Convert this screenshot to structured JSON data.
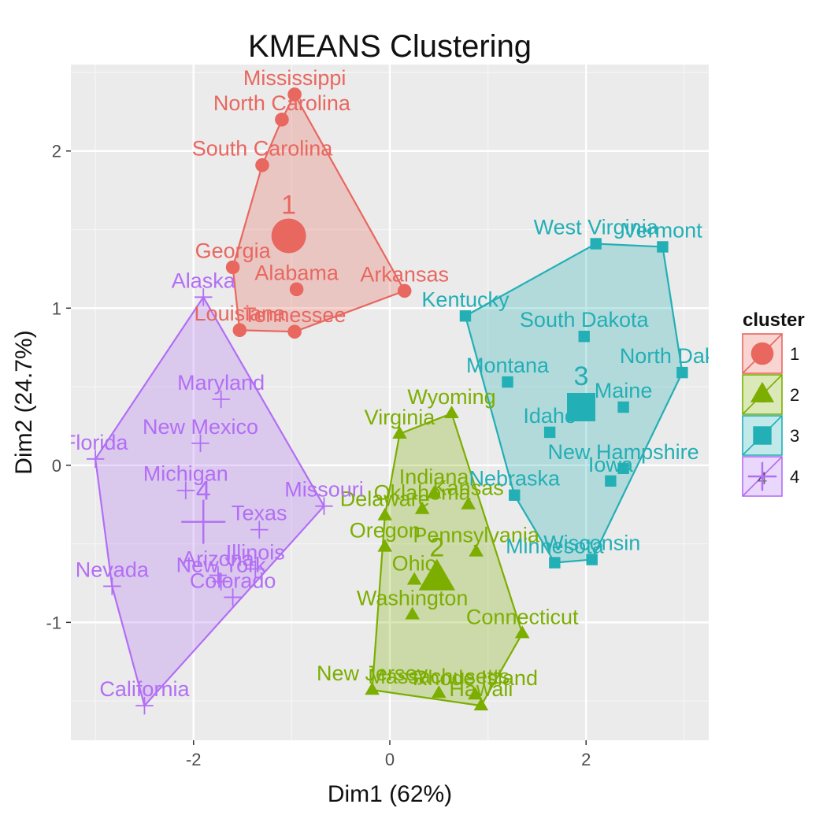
{
  "chart_data": {
    "type": "scatter",
    "title": "KMEANS Clustering",
    "xlabel": "Dim1 (62%)",
    "ylabel": "Dim2 (24.7%)",
    "xlim": [
      -3.25,
      3.25
    ],
    "ylim": [
      -1.75,
      2.55
    ],
    "x_ticks": [
      -2,
      0,
      2
    ],
    "y_ticks": [
      -1,
      0,
      1,
      2
    ],
    "x_tick_labels": [
      "-2",
      "0",
      "2"
    ],
    "y_tick_labels": [
      "-1",
      "0",
      "1",
      "2"
    ],
    "grid": true,
    "legend": {
      "title": "cluster",
      "position": "right",
      "entries": [
        "1",
        "2",
        "3",
        "4"
      ]
    },
    "colors": {
      "1": "#E8675F",
      "2": "#7CAE00",
      "3": "#22AFB5",
      "4": "#B26EF5"
    },
    "clusters": [
      {
        "name": "1",
        "shape": "circle",
        "centroid": {
          "x": -1.03,
          "y": 1.46,
          "label": "1"
        },
        "points": [
          {
            "label": "Mississippi",
            "x": -0.97,
            "y": 2.36
          },
          {
            "label": "North Carolina",
            "x": -1.1,
            "y": 2.2
          },
          {
            "label": "South Carolina",
            "x": -1.3,
            "y": 1.91
          },
          {
            "label": "Georgia",
            "x": -1.6,
            "y": 1.26
          },
          {
            "label": "Alabama",
            "x": -0.95,
            "y": 1.12
          },
          {
            "label": "Arkansas",
            "x": 0.15,
            "y": 1.11
          },
          {
            "label": "Louisiana",
            "x": -1.53,
            "y": 0.86
          },
          {
            "label": "Tennessee",
            "x": -0.97,
            "y": 0.85
          }
        ]
      },
      {
        "name": "2",
        "shape": "triangle",
        "centroid": {
          "x": 0.48,
          "y": -0.72,
          "label": "2"
        },
        "points": [
          {
            "label": "Wyoming",
            "x": 0.63,
            "y": 0.33
          },
          {
            "label": "Virginia",
            "x": 0.1,
            "y": 0.2
          },
          {
            "label": "Indiana",
            "x": 0.45,
            "y": -0.18
          },
          {
            "label": "Kansas",
            "x": 0.8,
            "y": -0.25
          },
          {
            "label": "Oklahoma",
            "x": 0.33,
            "y": -0.28
          },
          {
            "label": "Delaware",
            "x": -0.05,
            "y": -0.32
          },
          {
            "label": "Oregon",
            "x": -0.05,
            "y": -0.52
          },
          {
            "label": "Pennsylvania",
            "x": 0.88,
            "y": -0.55
          },
          {
            "label": "Ohio",
            "x": 0.25,
            "y": -0.73
          },
          {
            "label": "Washington",
            "x": 0.23,
            "y": -0.95
          },
          {
            "label": "Connecticut",
            "x": 1.35,
            "y": -1.07
          },
          {
            "label": "New Jersey",
            "x": -0.18,
            "y": -1.43
          },
          {
            "label": "Massachusetts",
            "x": 0.5,
            "y": -1.45
          },
          {
            "label": "Rhode Island",
            "x": 0.87,
            "y": -1.46
          },
          {
            "label": "Hawaii",
            "x": 0.93,
            "y": -1.53
          }
        ]
      },
      {
        "name": "3",
        "shape": "square",
        "centroid": {
          "x": 1.95,
          "y": 0.37,
          "label": "3"
        },
        "points": [
          {
            "label": "West Virginia",
            "x": 2.1,
            "y": 1.41
          },
          {
            "label": "Vermont",
            "x": 2.78,
            "y": 1.39
          },
          {
            "label": "Kentucky",
            "x": 0.77,
            "y": 0.95
          },
          {
            "label": "South Dakota",
            "x": 1.98,
            "y": 0.82
          },
          {
            "label": "North Dakota",
            "x": 2.98,
            "y": 0.59
          },
          {
            "label": "Montana",
            "x": 1.2,
            "y": 0.53
          },
          {
            "label": "Maine",
            "x": 2.38,
            "y": 0.37
          },
          {
            "label": "Idaho",
            "x": 1.63,
            "y": 0.21
          },
          {
            "label": "New Hampshire",
            "x": 2.38,
            "y": -0.02
          },
          {
            "label": "Iowa",
            "x": 2.25,
            "y": -0.1
          },
          {
            "label": "Nebraska",
            "x": 1.27,
            "y": -0.19
          },
          {
            "label": "Wisconsin",
            "x": 2.06,
            "y": -0.6
          },
          {
            "label": "Minnesota",
            "x": 1.68,
            "y": -0.62
          }
        ]
      },
      {
        "name": "4",
        "shape": "plus",
        "centroid": {
          "x": -1.9,
          "y": -0.36,
          "label": "4"
        },
        "points": [
          {
            "label": "Alaska",
            "x": -1.9,
            "y": 1.07
          },
          {
            "label": "Maryland",
            "x": -1.72,
            "y": 0.42
          },
          {
            "label": "New Mexico",
            "x": -1.93,
            "y": 0.14
          },
          {
            "label": "Florida",
            "x": -3.0,
            "y": 0.04
          },
          {
            "label": "Michigan",
            "x": -2.08,
            "y": -0.16
          },
          {
            "label": "Missouri",
            "x": -0.67,
            "y": -0.26
          },
          {
            "label": "Texas",
            "x": -1.33,
            "y": -0.41
          },
          {
            "label": "Illinois",
            "x": -1.37,
            "y": -0.66
          },
          {
            "label": "Arizona",
            "x": -1.75,
            "y": -0.7
          },
          {
            "label": "New York",
            "x": -1.72,
            "y": -0.74
          },
          {
            "label": "Nevada",
            "x": -2.83,
            "y": -0.77
          },
          {
            "label": "Colorado",
            "x": -1.6,
            "y": -0.84
          },
          {
            "label": "California",
            "x": -2.5,
            "y": -1.53
          }
        ]
      }
    ]
  }
}
